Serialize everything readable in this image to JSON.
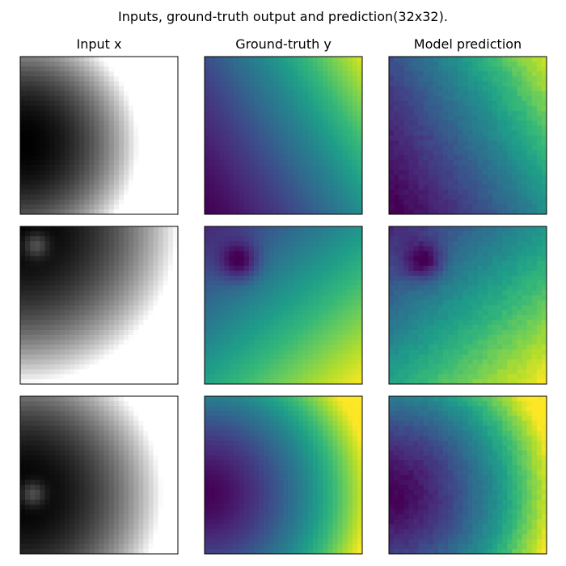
{
  "figure": {
    "suptitle": "Inputs, ground-truth output and prediction(32x32).",
    "column_titles": [
      "Input x",
      "Ground-truth y",
      "Model prediction"
    ]
  },
  "colors": {
    "input_colormap": [
      "#000000",
      "#ffffff"
    ],
    "output_colormap": [
      "#440154",
      "#482878",
      "#3e4989",
      "#31688e",
      "#26828e",
      "#1f9e89",
      "#35b779",
      "#6ece58",
      "#b5de2b",
      "#fde725"
    ]
  },
  "chart_data": {
    "type": "heatmap",
    "grid_size": [
      32,
      32
    ],
    "rows": 3,
    "columns": [
      "Input x",
      "Ground-truth y",
      "Model prediction"
    ],
    "axes": "off",
    "samples": [
      {
        "input": {
          "colormap": "gray",
          "pattern": "dark field with bright band along the right and top-right edge",
          "gradient_direction": [
            1.0,
            -0.2
          ],
          "center": [
            0.0,
            0.55
          ],
          "radius": 0.75,
          "hole": null
        },
        "ground_truth": {
          "colormap": "viridis",
          "pattern": "dark purple bottom-left rising to yellow in the top-right corner",
          "gradient_direction": [
            1.0,
            -0.6
          ],
          "range": [
            0.0,
            0.95
          ],
          "low_blob": null
        },
        "prediction": {
          "colormap": "viridis",
          "pattern": "matches ground truth, slightly noisier",
          "gradient_direction": [
            1.0,
            -0.6
          ],
          "range": [
            0.0,
            0.95
          ],
          "low_blob": null
        }
      },
      {
        "input": {
          "colormap": "gray",
          "pattern": "dark spot near top-left, brightening toward the bottom-right",
          "gradient_direction": [
            0.7,
            0.8
          ],
          "center": [
            0.0,
            0.0
          ],
          "radius": 1.0,
          "hole": [
            0.1,
            0.12
          ]
        },
        "ground_truth": {
          "colormap": "viridis",
          "pattern": "dark purple blob near top-left, yellow toward bottom-right",
          "gradient_direction": [
            0.7,
            0.8
          ],
          "range": [
            0.1,
            1.0
          ],
          "low_blob": [
            0.22,
            0.22
          ]
        },
        "prediction": {
          "colormap": "viridis",
          "pattern": "matches ground truth",
          "gradient_direction": [
            0.7,
            0.8
          ],
          "range": [
            0.1,
            1.0
          ],
          "low_blob": [
            0.22,
            0.22
          ]
        }
      },
      {
        "input": {
          "colormap": "gray",
          "pattern": "dark arc on the left with small grey spot, bright toward top-right",
          "gradient_direction": [
            1.0,
            -0.3
          ],
          "center": [
            0.0,
            0.62
          ],
          "radius": 0.9,
          "hole": [
            0.08,
            0.62
          ]
        },
        "ground_truth": {
          "colormap": "viridis",
          "pattern": "dark purple arc on the left, green-yellow band along the right edge",
          "gradient_direction": [
            1.0,
            -0.3
          ],
          "range": [
            0.0,
            1.0
          ],
          "low_blob": null
        },
        "prediction": {
          "colormap": "viridis",
          "pattern": "matches ground truth",
          "gradient_direction": [
            1.0,
            -0.3
          ],
          "range": [
            0.0,
            1.0
          ],
          "low_blob": null
        }
      }
    ]
  }
}
